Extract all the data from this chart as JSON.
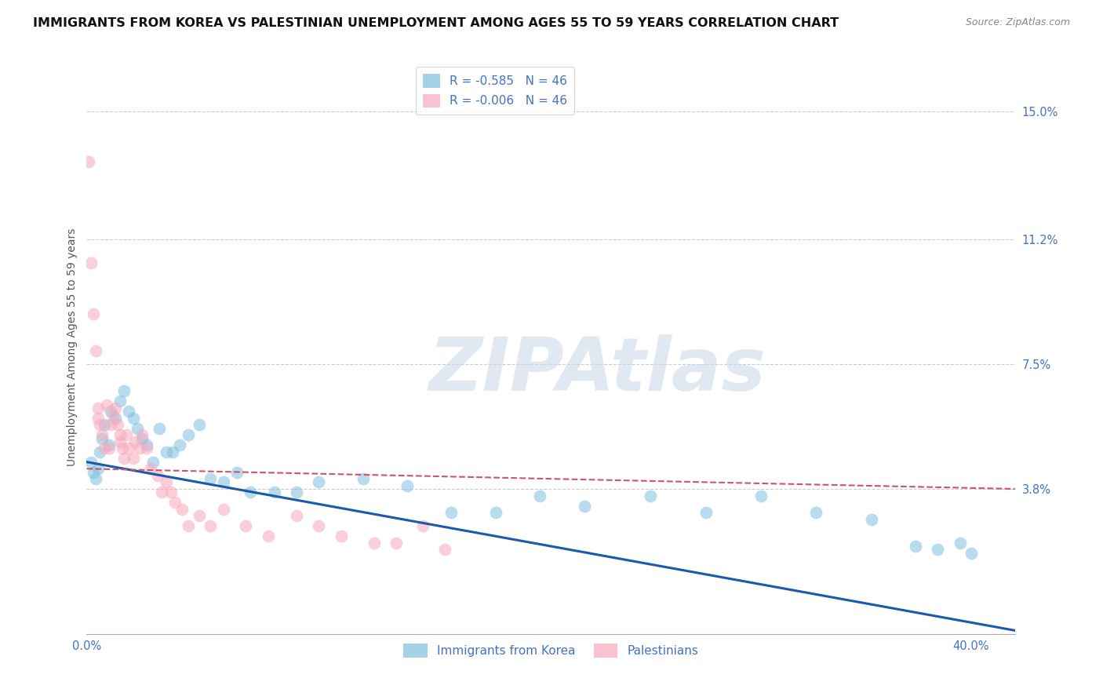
{
  "title": "IMMIGRANTS FROM KOREA VS PALESTINIAN UNEMPLOYMENT AMONG AGES 55 TO 59 YEARS CORRELATION CHART",
  "source": "Source: ZipAtlas.com",
  "ylabel": "Unemployment Among Ages 55 to 59 years",
  "yticks": [
    0.0,
    0.038,
    0.075,
    0.112,
    0.15
  ],
  "ytick_labels": [
    "",
    "3.8%",
    "7.5%",
    "11.2%",
    "15.0%"
  ],
  "xtick_vals": [
    0.0,
    0.4
  ],
  "xtick_labels": [
    "0.0%",
    "40.0%"
  ],
  "xlim": [
    0.0,
    0.42
  ],
  "ylim": [
    -0.005,
    0.165
  ],
  "legend_entries": [
    {
      "label": "R = -0.585   N = 46",
      "color": "#6baed6"
    },
    {
      "label": "R = -0.006   N = 46",
      "color": "#fc9cac"
    }
  ],
  "korea_scatter": [
    [
      0.002,
      0.046
    ],
    [
      0.003,
      0.043
    ],
    [
      0.004,
      0.041
    ],
    [
      0.005,
      0.044
    ],
    [
      0.006,
      0.049
    ],
    [
      0.007,
      0.053
    ],
    [
      0.008,
      0.057
    ],
    [
      0.01,
      0.051
    ],
    [
      0.011,
      0.061
    ],
    [
      0.013,
      0.059
    ],
    [
      0.015,
      0.064
    ],
    [
      0.017,
      0.067
    ],
    [
      0.019,
      0.061
    ],
    [
      0.021,
      0.059
    ],
    [
      0.023,
      0.056
    ],
    [
      0.025,
      0.053
    ],
    [
      0.027,
      0.051
    ],
    [
      0.03,
      0.046
    ],
    [
      0.033,
      0.056
    ],
    [
      0.036,
      0.049
    ],
    [
      0.039,
      0.049
    ],
    [
      0.042,
      0.051
    ],
    [
      0.046,
      0.054
    ],
    [
      0.051,
      0.057
    ],
    [
      0.056,
      0.041
    ],
    [
      0.062,
      0.04
    ],
    [
      0.068,
      0.043
    ],
    [
      0.074,
      0.037
    ],
    [
      0.085,
      0.037
    ],
    [
      0.095,
      0.037
    ],
    [
      0.105,
      0.04
    ],
    [
      0.125,
      0.041
    ],
    [
      0.145,
      0.039
    ],
    [
      0.165,
      0.031
    ],
    [
      0.185,
      0.031
    ],
    [
      0.205,
      0.036
    ],
    [
      0.225,
      0.033
    ],
    [
      0.255,
      0.036
    ],
    [
      0.28,
      0.031
    ],
    [
      0.305,
      0.036
    ],
    [
      0.33,
      0.031
    ],
    [
      0.355,
      0.029
    ],
    [
      0.375,
      0.021
    ],
    [
      0.395,
      0.022
    ],
    [
      0.385,
      0.02
    ],
    [
      0.4,
      0.019
    ]
  ],
  "pales_scatter": [
    [
      0.001,
      0.135
    ],
    [
      0.002,
      0.105
    ],
    [
      0.003,
      0.09
    ],
    [
      0.004,
      0.079
    ],
    [
      0.005,
      0.062
    ],
    [
      0.005,
      0.059
    ],
    [
      0.006,
      0.057
    ],
    [
      0.007,
      0.054
    ],
    [
      0.008,
      0.05
    ],
    [
      0.009,
      0.063
    ],
    [
      0.01,
      0.05
    ],
    [
      0.011,
      0.057
    ],
    [
      0.012,
      0.06
    ],
    [
      0.013,
      0.062
    ],
    [
      0.014,
      0.057
    ],
    [
      0.015,
      0.054
    ],
    [
      0.015,
      0.052
    ],
    [
      0.016,
      0.05
    ],
    [
      0.017,
      0.047
    ],
    [
      0.018,
      0.054
    ],
    [
      0.019,
      0.05
    ],
    [
      0.021,
      0.047
    ],
    [
      0.022,
      0.052
    ],
    [
      0.024,
      0.05
    ],
    [
      0.025,
      0.054
    ],
    [
      0.027,
      0.05
    ],
    [
      0.029,
      0.044
    ],
    [
      0.032,
      0.042
    ],
    [
      0.034,
      0.037
    ],
    [
      0.036,
      0.04
    ],
    [
      0.038,
      0.037
    ],
    [
      0.04,
      0.034
    ],
    [
      0.043,
      0.032
    ],
    [
      0.046,
      0.027
    ],
    [
      0.051,
      0.03
    ],
    [
      0.056,
      0.027
    ],
    [
      0.062,
      0.032
    ],
    [
      0.072,
      0.027
    ],
    [
      0.082,
      0.024
    ],
    [
      0.095,
      0.03
    ],
    [
      0.105,
      0.027
    ],
    [
      0.115,
      0.024
    ],
    [
      0.13,
      0.022
    ],
    [
      0.14,
      0.022
    ],
    [
      0.152,
      0.027
    ],
    [
      0.162,
      0.02
    ]
  ],
  "korea_color": "#7fbfdf",
  "pales_color": "#f9a8bc",
  "korea_trend_x": [
    0.0,
    0.42
  ],
  "korea_trend_y": [
    0.046,
    -0.004
  ],
  "pales_trend_x": [
    0.0,
    0.42
  ],
  "pales_trend_y": [
    0.044,
    0.038
  ],
  "background_color": "#ffffff",
  "grid_color": "#cccccc",
  "watermark_text": "ZIPAtlas",
  "watermark_color": "#c8d8e8",
  "title_fontsize": 11.5,
  "ylabel_fontsize": 10,
  "tick_fontsize": 10.5,
  "scatter_size": 130,
  "scatter_alpha": 0.55,
  "korea_trend_color": "#1a5aaa",
  "pales_trend_color": "#cc5566",
  "legend_fontsize": 11
}
